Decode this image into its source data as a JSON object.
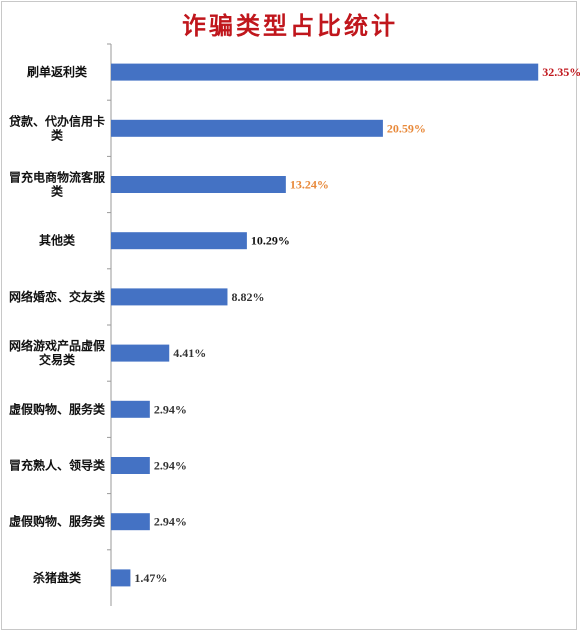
{
  "chart_data": {
    "type": "bar",
    "orientation": "horizontal",
    "title": "诈骗类型占比统计",
    "xlabel": "",
    "ylabel": "",
    "grid": false,
    "xlim": [
      0,
      34
    ],
    "categories": [
      [
        "刷单返利类"
      ],
      [
        "贷款、代办信用卡",
        "类"
      ],
      [
        "冒充电商物流客服",
        "类"
      ],
      [
        "其他类"
      ],
      [
        "网络婚恋、交友类"
      ],
      [
        "网络游戏产品虚假",
        "交易类"
      ],
      [
        "虚假购物、服务类"
      ],
      [
        "冒充熟人、领导类"
      ],
      [
        "虚假购物、服务类"
      ],
      [
        "杀猪盘类"
      ]
    ],
    "values": [
      32.35,
      20.59,
      13.24,
      10.29,
      8.82,
      4.41,
      2.94,
      2.94,
      2.94,
      1.47
    ],
    "labels": [
      "32.35%",
      "20.59%",
      "13.24%",
      "10.29%",
      "8.82%",
      "4.41%",
      "2.94%",
      "2.94%",
      "2.94%",
      "1.47%"
    ],
    "label_colors": [
      "#c0161c",
      "#e8893a",
      "#e8893a",
      "#111111",
      "#333333",
      "#333333",
      "#333333",
      "#333333",
      "#333333",
      "#333333"
    ],
    "bar_color": "#4472c4"
  }
}
